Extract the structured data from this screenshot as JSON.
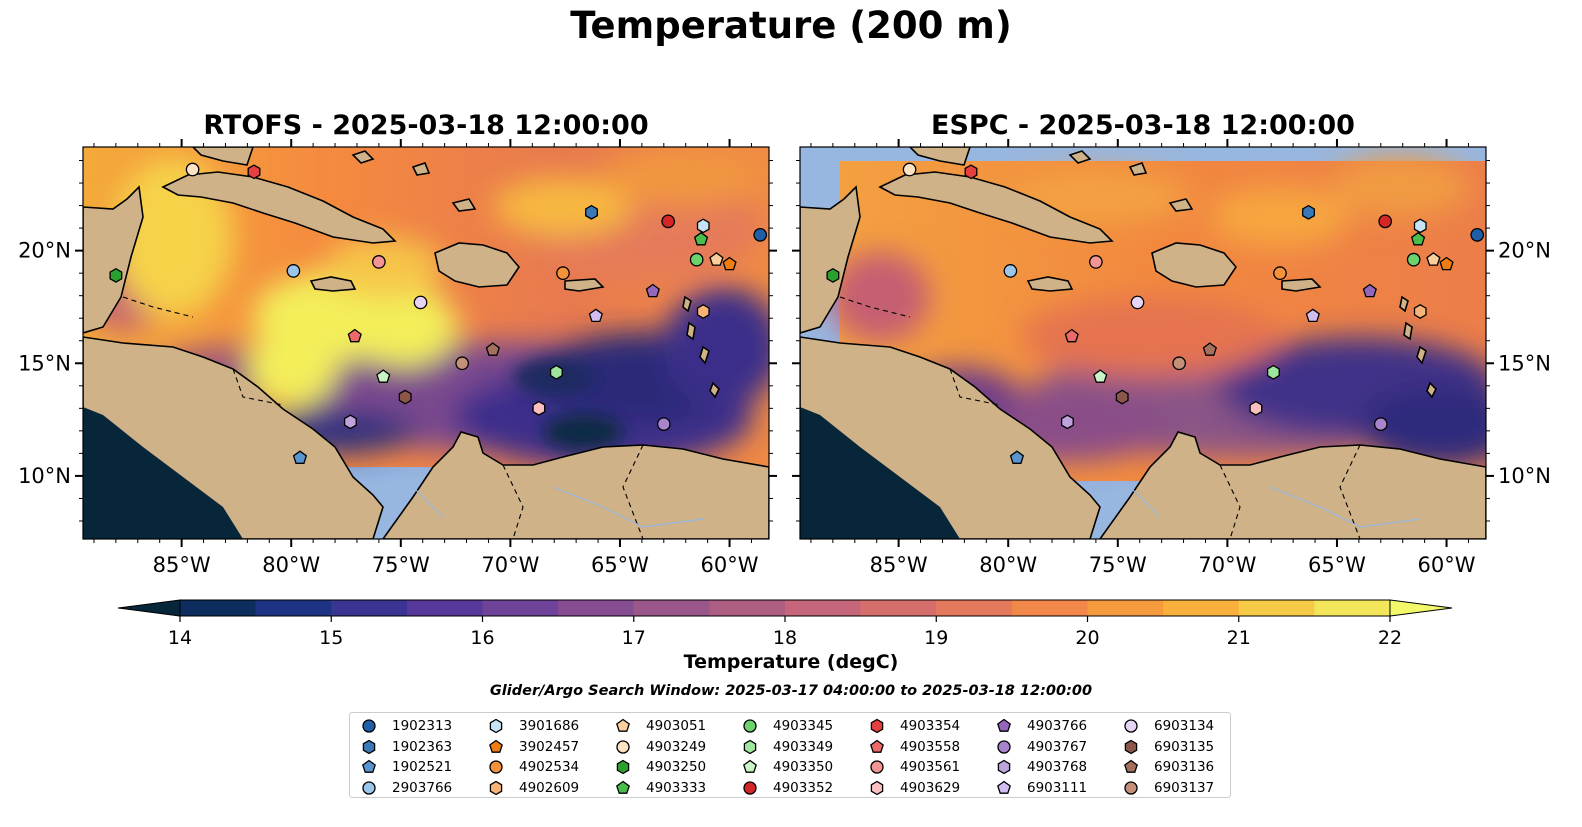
{
  "figure_title": "Temperature (200 m)",
  "colors": {
    "ocean_mask": "#97b6e0",
    "land": "#cfb287",
    "deep_fill": "#07263a",
    "warm": "#f58a3f",
    "hot": "#f3f258"
  },
  "panels": [
    {
      "id": "rtofs",
      "title": "RTOFS - 2025-03-18 12:00:00"
    },
    {
      "id": "espc",
      "title": "ESPC - 2025-03-18 12:00:00"
    }
  ],
  "axis_labels": {
    "lon": [
      "85°W",
      "80°W",
      "75°W",
      "70°W",
      "65°W",
      "60°W"
    ],
    "lat": [
      "20°N",
      "15°N",
      "10°N"
    ]
  },
  "colorbar": {
    "label": "Temperature (degC)",
    "ticks": [
      "14",
      "15",
      "16",
      "17",
      "18",
      "19",
      "20",
      "21",
      "22"
    ],
    "min": 14,
    "max": 22,
    "extend": "both",
    "colormap": "thermal"
  },
  "search_window": "Glider/Argo Search Window: 2025-03-17 04:00:00 to 2025-03-18 12:00:00",
  "legend": {
    "entries": [
      {
        "id": "1902313",
        "color": "#1f5fa8",
        "marker": "circle"
      },
      {
        "id": "1902363",
        "color": "#3a78b8",
        "marker": "hexagon"
      },
      {
        "id": "1902521",
        "color": "#5a95cf",
        "marker": "pentagon"
      },
      {
        "id": "2903766",
        "color": "#9cc5ea",
        "marker": "circle"
      },
      {
        "id": "3901686",
        "color": "#c6e3f8",
        "marker": "hexagon"
      },
      {
        "id": "3902457",
        "color": "#ef7d12",
        "marker": "pentagon"
      },
      {
        "id": "4902534",
        "color": "#f5923a",
        "marker": "circle"
      },
      {
        "id": "4902609",
        "color": "#f9b377",
        "marker": "hexagon"
      },
      {
        "id": "4903051",
        "color": "#fbcf9c",
        "marker": "pentagon"
      },
      {
        "id": "4903249",
        "color": "#fde2c4",
        "marker": "circle"
      },
      {
        "id": "4903250",
        "color": "#2ca02c",
        "marker": "hexagon"
      },
      {
        "id": "4903333",
        "color": "#4bbd4b",
        "marker": "pentagon"
      },
      {
        "id": "4903345",
        "color": "#6cd36c",
        "marker": "circle"
      },
      {
        "id": "4903349",
        "color": "#9ee69e",
        "marker": "hexagon"
      },
      {
        "id": "4903350",
        "color": "#c9f4c5",
        "marker": "pentagon"
      },
      {
        "id": "4903352",
        "color": "#d62728",
        "marker": "circle"
      },
      {
        "id": "4903354",
        "color": "#e3403f",
        "marker": "hexagon"
      },
      {
        "id": "4903558",
        "color": "#ec6a6a",
        "marker": "pentagon"
      },
      {
        "id": "4903561",
        "color": "#f49595",
        "marker": "circle"
      },
      {
        "id": "4903629",
        "color": "#fac0c0",
        "marker": "hexagon"
      },
      {
        "id": "4903766",
        "color": "#9467bd",
        "marker": "pentagon"
      },
      {
        "id": "4903767",
        "color": "#a884cc",
        "marker": "circle"
      },
      {
        "id": "4903768",
        "color": "#bea3dc",
        "marker": "hexagon"
      },
      {
        "id": "6903111",
        "color": "#d1bdf0",
        "marker": "pentagon"
      },
      {
        "id": "6903134",
        "color": "#e6d4f6",
        "marker": "circle"
      },
      {
        "id": "6903135",
        "color": "#8c564b",
        "marker": "hexagon"
      },
      {
        "id": "6903136",
        "color": "#a5705e",
        "marker": "pentagon"
      },
      {
        "id": "6903137",
        "color": "#c4907a",
        "marker": "circle"
      }
    ]
  },
  "chart_data": {
    "type": "heatmap",
    "title": "Temperature (200 m)",
    "variable": "Temperature",
    "units": "degC",
    "depth": "200 m",
    "lon_range": [
      -89.5,
      -58.2
    ],
    "lat_range": [
      7.2,
      24.6
    ],
    "lon_ticks": [
      -85,
      -80,
      -75,
      -70,
      -65,
      -60
    ],
    "lat_ticks": [
      20,
      15,
      10
    ],
    "models": [
      "RTOFS",
      "ESPC"
    ],
    "time": "2025-03-18 12:00:00",
    "observations": [
      {
        "id": "1902313",
        "lon": -58.6,
        "lat": 20.7
      },
      {
        "id": "1902363",
        "lon": -66.3,
        "lat": 21.7
      },
      {
        "id": "1902521",
        "lon": -79.6,
        "lat": 10.8
      },
      {
        "id": "2903766",
        "lon": -79.9,
        "lat": 19.1
      },
      {
        "id": "3901686",
        "lon": -61.2,
        "lat": 21.1
      },
      {
        "id": "3902457",
        "lon": -60.0,
        "lat": 19.4
      },
      {
        "id": "4902534",
        "lon": -67.6,
        "lat": 19.0
      },
      {
        "id": "4902609",
        "lon": -61.2,
        "lat": 17.3
      },
      {
        "id": "4903051",
        "lon": -60.6,
        "lat": 19.6
      },
      {
        "id": "4903249",
        "lon": -84.5,
        "lat": 23.6
      },
      {
        "id": "4903250",
        "lon": -88.0,
        "lat": 18.9
      },
      {
        "id": "4903333",
        "lon": -61.3,
        "lat": 20.5
      },
      {
        "id": "4903345",
        "lon": -61.5,
        "lat": 19.6
      },
      {
        "id": "4903349",
        "lon": -67.9,
        "lat": 14.6
      },
      {
        "id": "4903350",
        "lon": -75.8,
        "lat": 14.4
      },
      {
        "id": "4903352",
        "lon": -62.8,
        "lat": 21.3
      },
      {
        "id": "4903354",
        "lon": -81.7,
        "lat": 23.5
      },
      {
        "id": "4903558",
        "lon": -77.1,
        "lat": 16.2
      },
      {
        "id": "4903561",
        "lon": -76.0,
        "lat": 19.5
      },
      {
        "id": "4903629",
        "lon": -68.7,
        "lat": 13.0
      },
      {
        "id": "4903766",
        "lon": -63.5,
        "lat": 18.2
      },
      {
        "id": "4903767",
        "lon": -63.0,
        "lat": 12.3
      },
      {
        "id": "4903768",
        "lon": -77.3,
        "lat": 12.4
      },
      {
        "id": "6903111",
        "lon": -66.1,
        "lat": 17.1
      },
      {
        "id": "6903134",
        "lon": -74.1,
        "lat": 17.7
      },
      {
        "id": "6903135",
        "lon": -74.8,
        "lat": 13.5
      },
      {
        "id": "6903136",
        "lon": -70.8,
        "lat": 15.6
      },
      {
        "id": "6903137",
        "lon": -72.2,
        "lat": 15.0
      }
    ]
  }
}
